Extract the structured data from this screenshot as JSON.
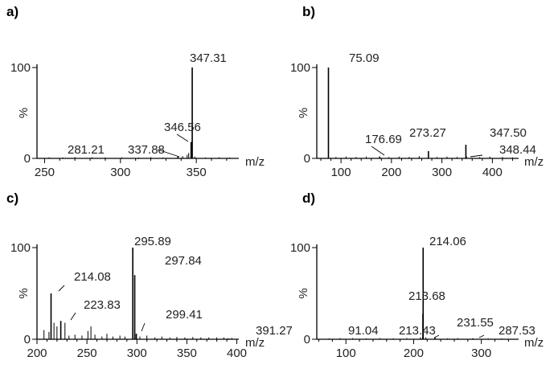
{
  "chart_data": [
    {
      "type": "bar",
      "panel": "a)",
      "ylabel": "%",
      "xlabel": "m/z",
      "xlim": [
        245,
        378
      ],
      "ylim": [
        0,
        100
      ],
      "xticks": [
        250,
        300,
        350
      ],
      "yticks": [
        0,
        100
      ],
      "labeled_peaks": [
        {
          "mz": 347.31,
          "label": "347.31",
          "intensity": 100
        },
        {
          "mz": 346.56,
          "label": "346.56",
          "intensity": 18
        },
        {
          "mz": 337.88,
          "label": "337.88",
          "intensity": 2
        },
        {
          "mz": 281.21,
          "label": "281.21",
          "intensity": 1
        }
      ],
      "minor_peaks": [
        {
          "mz": 253,
          "intensity": 1.2
        },
        {
          "mz": 262,
          "intensity": 1
        },
        {
          "mz": 270,
          "intensity": 1.4
        },
        {
          "mz": 290,
          "intensity": 1
        },
        {
          "mz": 301,
          "intensity": 1.2
        },
        {
          "mz": 312,
          "intensity": 1
        },
        {
          "mz": 320,
          "intensity": 1.3
        },
        {
          "mz": 328,
          "intensity": 1
        },
        {
          "mz": 341,
          "intensity": 2.5
        },
        {
          "mz": 344,
          "intensity": 4
        },
        {
          "mz": 345,
          "intensity": 6
        },
        {
          "mz": 349,
          "intensity": 2
        },
        {
          "mz": 356,
          "intensity": 1
        },
        {
          "mz": 365,
          "intensity": 1.2
        },
        {
          "mz": 372,
          "intensity": 1
        }
      ]
    },
    {
      "type": "bar",
      "panel": "b)",
      "ylabel": "%",
      "xlabel": "m/z",
      "xlim": [
        52,
        452
      ],
      "ylim": [
        0,
        100
      ],
      "xticks": [
        100,
        200,
        300,
        400
      ],
      "yticks": [
        0,
        100
      ],
      "labeled_peaks": [
        {
          "mz": 75.09,
          "label": "75.09",
          "intensity": 100
        },
        {
          "mz": 176.69,
          "label": "176.69",
          "intensity": 2
        },
        {
          "mz": 273.27,
          "label": "273.27",
          "intensity": 8
        },
        {
          "mz": 347.5,
          "label": "347.50",
          "intensity": 15
        },
        {
          "mz": 348.44,
          "label": "348.44",
          "intensity": 2
        }
      ],
      "minor_peaks": [
        {
          "mz": 90,
          "intensity": 1.5
        },
        {
          "mz": 110,
          "intensity": 2
        },
        {
          "mz": 130,
          "intensity": 1.5
        },
        {
          "mz": 150,
          "intensity": 2
        },
        {
          "mz": 195,
          "intensity": 1.5
        },
        {
          "mz": 215,
          "intensity": 2
        },
        {
          "mz": 235,
          "intensity": 1.5
        },
        {
          "mz": 255,
          "intensity": 2.5
        },
        {
          "mz": 290,
          "intensity": 1.5
        },
        {
          "mz": 310,
          "intensity": 2
        },
        {
          "mz": 330,
          "intensity": 1.5
        },
        {
          "mz": 375,
          "intensity": 1.5
        },
        {
          "mz": 395,
          "intensity": 2
        },
        {
          "mz": 420,
          "intensity": 1.5
        },
        {
          "mz": 440,
          "intensity": 1
        }
      ]
    },
    {
      "type": "bar",
      "panel": "c)",
      "ylabel": "%",
      "xlabel": "m/z",
      "xlim": [
        200,
        402
      ],
      "ylim": [
        0,
        100
      ],
      "xticks": [
        200,
        250,
        300,
        350,
        400
      ],
      "yticks": [
        0,
        100
      ],
      "labeled_peaks": [
        {
          "mz": 295.89,
          "label": "295.89",
          "intensity": 100
        },
        {
          "mz": 297.84,
          "label": "297.84",
          "intensity": 70
        },
        {
          "mz": 214.08,
          "label": "214.08",
          "intensity": 50
        },
        {
          "mz": 223.83,
          "label": "223.83",
          "intensity": 20
        },
        {
          "mz": 299.41,
          "label": "299.41",
          "intensity": 6
        },
        {
          "mz": 391.27,
          "label": "391.27",
          "intensity": 1
        }
      ],
      "minor_peaks": [
        {
          "mz": 207,
          "intensity": 10
        },
        {
          "mz": 212,
          "intensity": 8
        },
        {
          "mz": 217,
          "intensity": 18
        },
        {
          "mz": 220,
          "intensity": 14
        },
        {
          "mz": 228,
          "intensity": 18
        },
        {
          "mz": 232,
          "intensity": 4
        },
        {
          "mz": 238,
          "intensity": 5
        },
        {
          "mz": 245,
          "intensity": 4
        },
        {
          "mz": 251,
          "intensity": 9
        },
        {
          "mz": 254,
          "intensity": 14
        },
        {
          "mz": 258,
          "intensity": 5
        },
        {
          "mz": 265,
          "intensity": 3
        },
        {
          "mz": 270,
          "intensity": 6
        },
        {
          "mz": 276,
          "intensity": 3
        },
        {
          "mz": 283,
          "intensity": 4
        },
        {
          "mz": 288,
          "intensity": 3
        },
        {
          "mz": 303,
          "intensity": 3
        },
        {
          "mz": 310,
          "intensity": 4
        },
        {
          "mz": 318,
          "intensity": 2
        },
        {
          "mz": 325,
          "intensity": 3
        },
        {
          "mz": 333,
          "intensity": 2
        },
        {
          "mz": 340,
          "intensity": 2.5
        },
        {
          "mz": 348,
          "intensity": 2
        },
        {
          "mz": 356,
          "intensity": 2.5
        },
        {
          "mz": 364,
          "intensity": 2
        },
        {
          "mz": 372,
          "intensity": 2
        },
        {
          "mz": 380,
          "intensity": 2
        },
        {
          "mz": 387,
          "intensity": 2
        },
        {
          "mz": 395,
          "intensity": 1.5
        }
      ]
    },
    {
      "type": "bar",
      "panel": "d)",
      "ylabel": "%",
      "xlabel": "m/z",
      "xlim": [
        57,
        355
      ],
      "ylim": [
        0,
        100
      ],
      "xticks": [
        100,
        200,
        300
      ],
      "yticks": [
        0,
        100
      ],
      "labeled_peaks": [
        {
          "mz": 214.06,
          "label": "214.06",
          "intensity": 100
        },
        {
          "mz": 213.68,
          "label": "213.68",
          "intensity": 28
        },
        {
          "mz": 213.43,
          "label": "213.43",
          "intensity": 2
        },
        {
          "mz": 91.04,
          "label": "91.04",
          "intensity": 1
        },
        {
          "mz": 231.55,
          "label": "231.55",
          "intensity": 2
        },
        {
          "mz": 287.53,
          "label": "287.53",
          "intensity": 1
        }
      ],
      "minor_peaks": [
        {
          "mz": 75,
          "intensity": 1
        },
        {
          "mz": 110,
          "intensity": 1.2
        },
        {
          "mz": 130,
          "intensity": 1
        },
        {
          "mz": 150,
          "intensity": 1.3
        },
        {
          "mz": 170,
          "intensity": 1
        },
        {
          "mz": 190,
          "intensity": 1.2
        },
        {
          "mz": 210,
          "intensity": 2
        },
        {
          "mz": 218,
          "intensity": 2
        },
        {
          "mz": 250,
          "intensity": 1
        },
        {
          "mz": 265,
          "intensity": 1.2
        },
        {
          "mz": 310,
          "intensity": 1
        },
        {
          "mz": 330,
          "intensity": 1
        }
      ]
    }
  ]
}
